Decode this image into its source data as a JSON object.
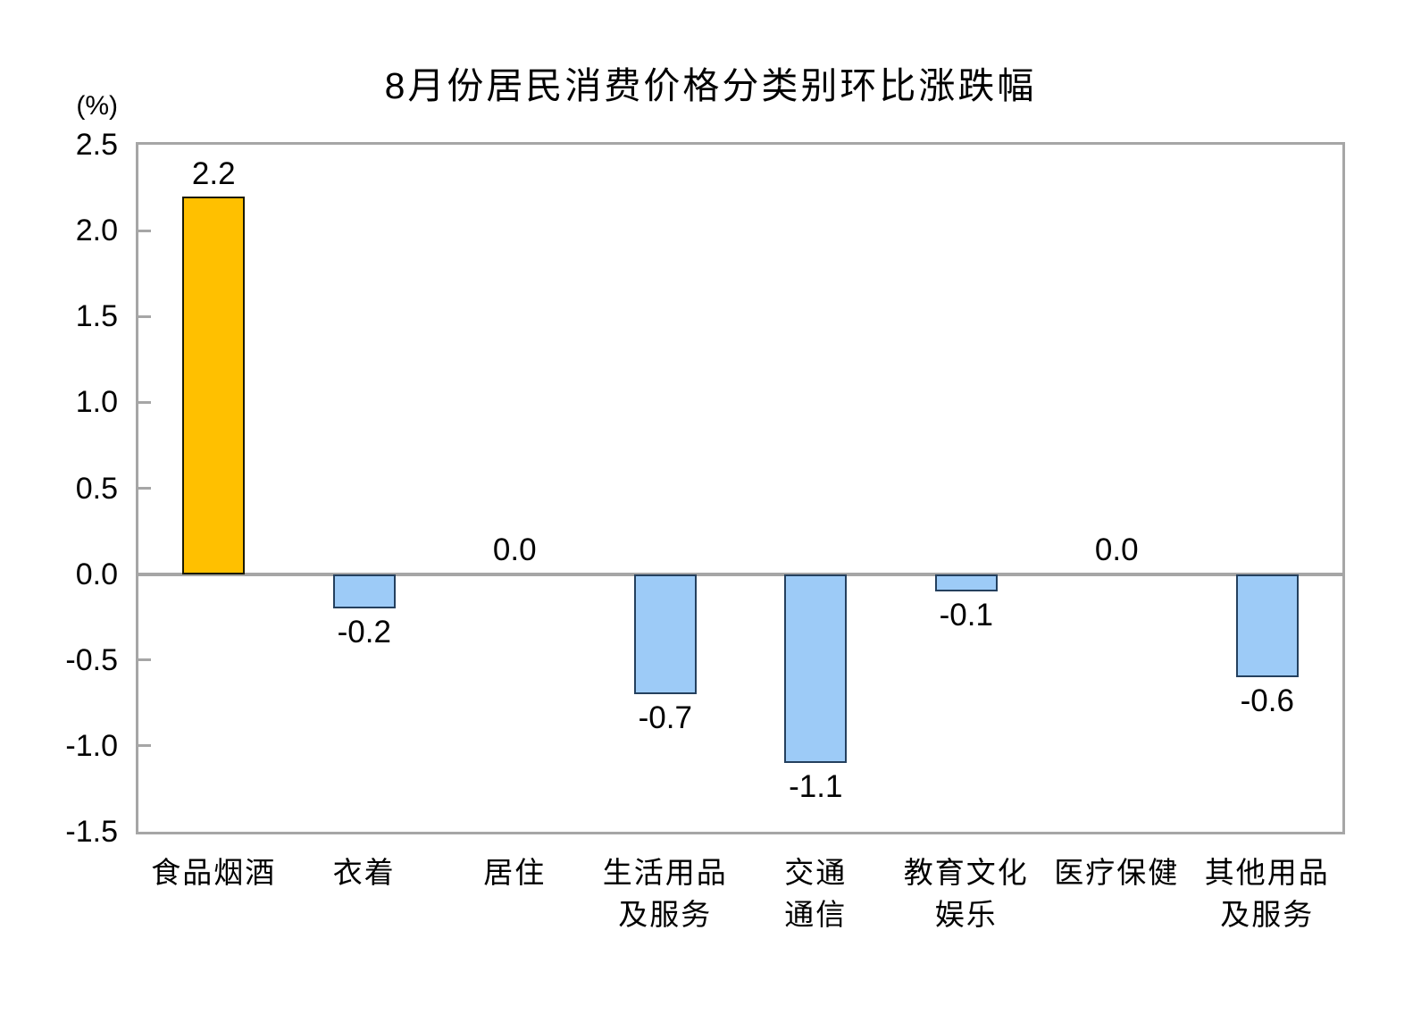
{
  "page": {
    "background": "#FFFFFF"
  },
  "chart_data": {
    "type": "bar",
    "title": "8月份居民消费价格分类别环比涨跌幅",
    "unit_label": "(%)",
    "categories": [
      "食品烟酒",
      "衣着",
      "居住",
      "生活用品\n及服务",
      "交通\n通信",
      "教育文化\n娱乐",
      "医疗保健",
      "其他用品\n及服务"
    ],
    "values": [
      2.2,
      -0.2,
      0.0,
      -0.7,
      -1.1,
      -0.1,
      0.0,
      -0.6
    ],
    "value_labels": [
      "2.2",
      "-0.2",
      "0.0",
      "-0.7",
      "-1.1",
      "-0.1",
      "0.0",
      "-0.6"
    ],
    "ylim": [
      -1.5,
      2.5
    ],
    "yticks": [
      2.5,
      2.0,
      1.5,
      1.0,
      0.5,
      0.0,
      -0.5,
      -1.0,
      -1.5
    ],
    "ytick_labels": [
      "2.5",
      "2.0",
      "1.5",
      "1.0",
      "0.5",
      "0.0",
      "-0.5",
      "-1.0",
      "-1.5"
    ],
    "bar_fill": [
      "#FFC000",
      "#9DCBF7",
      "#9DCBF7",
      "#9DCBF7",
      "#9DCBF7",
      "#9DCBF7",
      "#9DCBF7",
      "#9DCBF7"
    ],
    "bar_border": [
      "#1A1A00",
      "#24405E",
      "#24405E",
      "#24405E",
      "#24405E",
      "#24405E",
      "#24405E",
      "#24405E"
    ],
    "axis_color": "#A6A6A6",
    "text_color": "#000000",
    "grid": false,
    "legend": "none"
  }
}
